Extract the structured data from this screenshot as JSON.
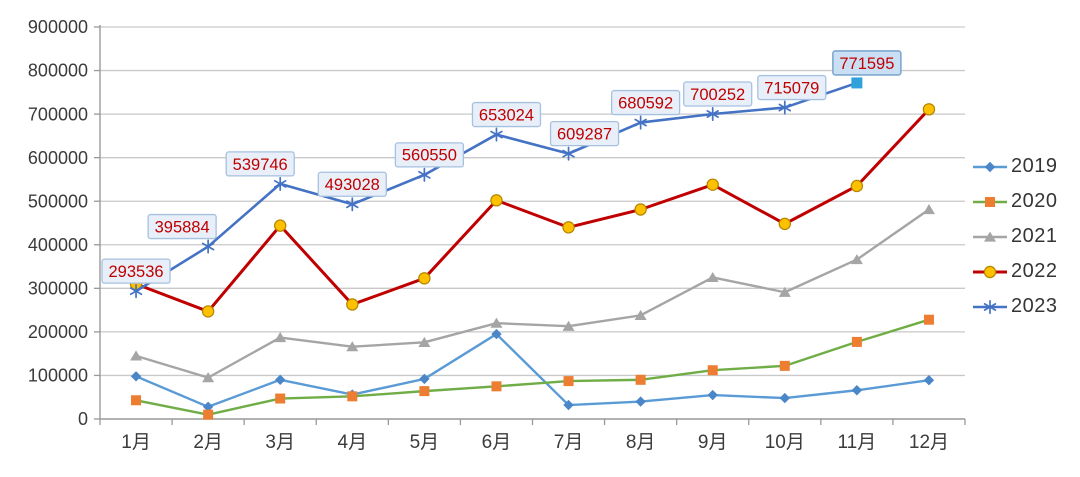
{
  "chart_data": {
    "type": "line",
    "title": "",
    "xlabel": "",
    "ylabel": "",
    "grid": true,
    "legend_position": "right",
    "categories": [
      "1月",
      "2月",
      "3月",
      "4月",
      "5月",
      "6月",
      "7月",
      "8月",
      "9月",
      "10月",
      "11月",
      "12月"
    ],
    "y_axis": {
      "min": 0,
      "max": 900000,
      "step": 100000,
      "tick_labels": [
        "0",
        "100000",
        "200000",
        "300000",
        "400000",
        "500000",
        "600000",
        "700000",
        "800000",
        "900000"
      ]
    },
    "series": [
      {
        "name": "2019",
        "line_color": "#5B9BD5",
        "marker": "diamond",
        "marker_color": "#4A86C8",
        "line_width": 2.4,
        "values": [
          98000,
          28000,
          90000,
          56000,
          92000,
          195000,
          32000,
          40000,
          55000,
          48000,
          66000,
          89000
        ]
      },
      {
        "name": "2020",
        "line_color": "#70AD47",
        "marker": "square",
        "marker_color": "#ED7D31",
        "line_width": 2.4,
        "values": [
          43000,
          10000,
          47000,
          52000,
          64000,
          75000,
          87000,
          90000,
          112000,
          122000,
          177000,
          228000
        ]
      },
      {
        "name": "2021",
        "line_color": "#A5A5A5",
        "marker": "triangle",
        "marker_color": "#A5A5A5",
        "line_width": 2.4,
        "values": [
          145000,
          95000,
          187000,
          166000,
          176000,
          220000,
          213000,
          238000,
          325000,
          291000,
          366000,
          481000
        ]
      },
      {
        "name": "2022",
        "line_color": "#C00000",
        "marker": "circle",
        "marker_color": "#FFC000",
        "marker_stroke": "#B38600",
        "line_width": 3,
        "values": [
          310000,
          247000,
          444000,
          263000,
          323000,
          502000,
          440000,
          481000,
          538000,
          448000,
          535000,
          711000
        ]
      },
      {
        "name": "2023",
        "line_color": "#4472C4",
        "marker": "asterisk",
        "marker_color": "#4472C4",
        "line_width": 2.6,
        "values": [
          293536,
          395884,
          539746,
          493028,
          560550,
          653024,
          609287,
          680592,
          700252,
          715079,
          771595,
          null
        ],
        "data_labels": [
          "293536",
          "395884",
          "539746",
          "493028",
          "560550",
          "653024",
          "609287",
          "680592",
          "700252",
          "715079",
          "771595"
        ],
        "label_dx": [
          0,
          -26,
          -20,
          0,
          5,
          10,
          16,
          5,
          5,
          7,
          10
        ],
        "last_marker": {
          "shape": "big-square",
          "color": "#2FA2DC"
        }
      }
    ],
    "data_label_style": {
      "text_color": "#C00000",
      "fill": "#E9EFF8",
      "border": "#A6C1E0",
      "highlight_fill": "#CBDFF4",
      "highlight_border": "#7FA8D0"
    },
    "axis_colors": {
      "gridline": "#C9C9C9",
      "axis_line": "#999999",
      "tick_text": "#3B3B3B"
    }
  }
}
